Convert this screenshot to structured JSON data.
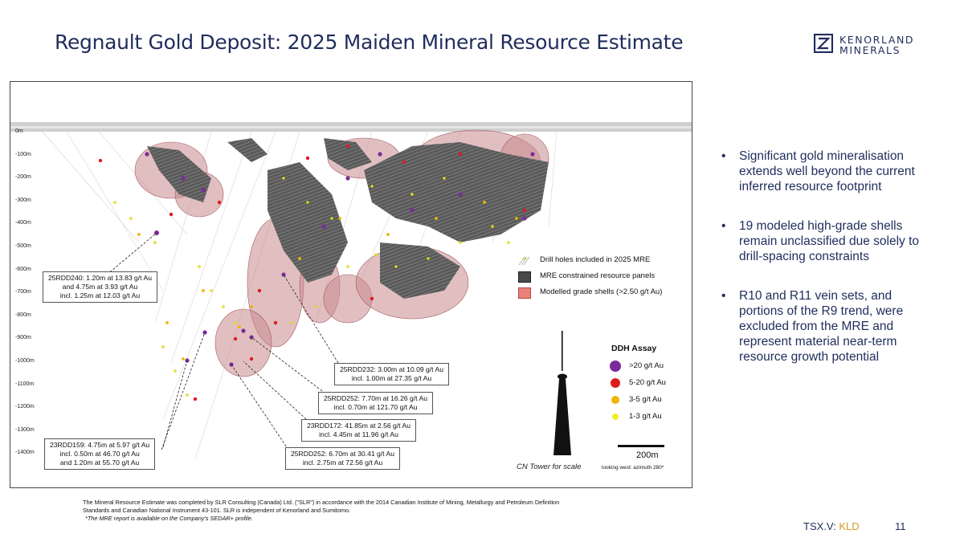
{
  "slide": {
    "title": "Regnault Gold Deposit: 2025 Maiden Mineral Resource Estimate",
    "logo_line1": "KENORLAND",
    "logo_line2": "MINERALS",
    "brand_color": "#1f2d5c",
    "accent_color": "#d39a1e"
  },
  "section": {
    "depth_labels": [
      "0m",
      "-100m",
      "-200m",
      "-300m",
      "-400m",
      "-500m",
      "-600m",
      "-700m",
      "-800m",
      "-900m",
      "-1000m",
      "-1100m",
      "-1200m",
      "-1300m",
      "-1400m"
    ],
    "callouts": [
      {
        "id": "25RDD240",
        "lines": [
          "25RDD240: 1.20m at 13.83 g/t Au",
          "and 4.75m at 3.93 g/t Au",
          "incl. 1.25m at 12.03 g/t Au"
        ]
      },
      {
        "id": "25RDD232",
        "lines": [
          "25RDD232: 3.00m at 10.09 g/t Au",
          "incl. 1.00m at 27.35 g/t Au"
        ]
      },
      {
        "id": "25RDD252a",
        "lines": [
          "25RDD252: 7.70m at 16.26 g/t Au",
          "incl. 0.70m at 121.70 g/t Au"
        ]
      },
      {
        "id": "23RDD172",
        "lines": [
          "23RDD172: 41.85m at 2.56 g/t Au",
          "incl. 4.45m at 11.96 g/t Au"
        ]
      },
      {
        "id": "25RDD252b",
        "lines": [
          "25RDD252: 6.70m at 30.41 g/t Au",
          "incl. 2.75m at 72.56 g/t Au"
        ]
      },
      {
        "id": "23RDD159",
        "lines": [
          "23RDD159: 4.75m at 5.97 g/t Au",
          "incl. 0.50m at 46.70 g/t Au",
          "and 1.20m at 55.70 g/t Au"
        ]
      }
    ],
    "legend": [
      {
        "label": "Drill holes included in 2025 MRE",
        "icon": "drill-hole-lines"
      },
      {
        "label": "MRE constrained resource panels",
        "color": "#4a4a4a"
      },
      {
        "label": "Modelled grade shells (>2.50 g/t Au)",
        "color": "#e8827a"
      }
    ],
    "assay": {
      "title": "DDH Assay",
      "items": [
        {
          "label": ">20 g/t Au",
          "color": "#7b2a9a"
        },
        {
          "label": "5-20 g/t Au",
          "color": "#e01a1a"
        },
        {
          "label": "3-5 g/t Au",
          "color": "#f0b400"
        },
        {
          "label": "1-3 g/t Au",
          "color": "#eeee22"
        }
      ]
    },
    "scale_label": "200m",
    "view_label": "looking west: azimuth 280º",
    "tower_label": "CN Tower for scale"
  },
  "bullets": [
    "Significant gold mineralisation extends well beyond the current inferred resource footprint",
    "19 modeled high-grade shells remain unclassified due solely to drill-spacing constraints",
    "R10 and R11 vein sets, and portions of the R9 trend, were excluded from the MRE and represent material near-term resource growth potential"
  ],
  "bullet_symbol": "•",
  "footnote": {
    "text": "The Mineral Resource Estimate was completed by SLR Consulting (Canada) Ltd. (\"SLR\") in accordance with the 2014 Canadian Institute of Mining, Metallurgy and Petroleum Definition Standards and Canadian National Instrument 43-101. SLR is independent of Kenorland and Sumitomo.",
    "italic": "*The MRE report is available on the Company's SEDAR+ profile."
  },
  "footer": {
    "ticker_prefix": "TSX.V: ",
    "ticker_symbol": "KLD",
    "page_number": "11"
  }
}
